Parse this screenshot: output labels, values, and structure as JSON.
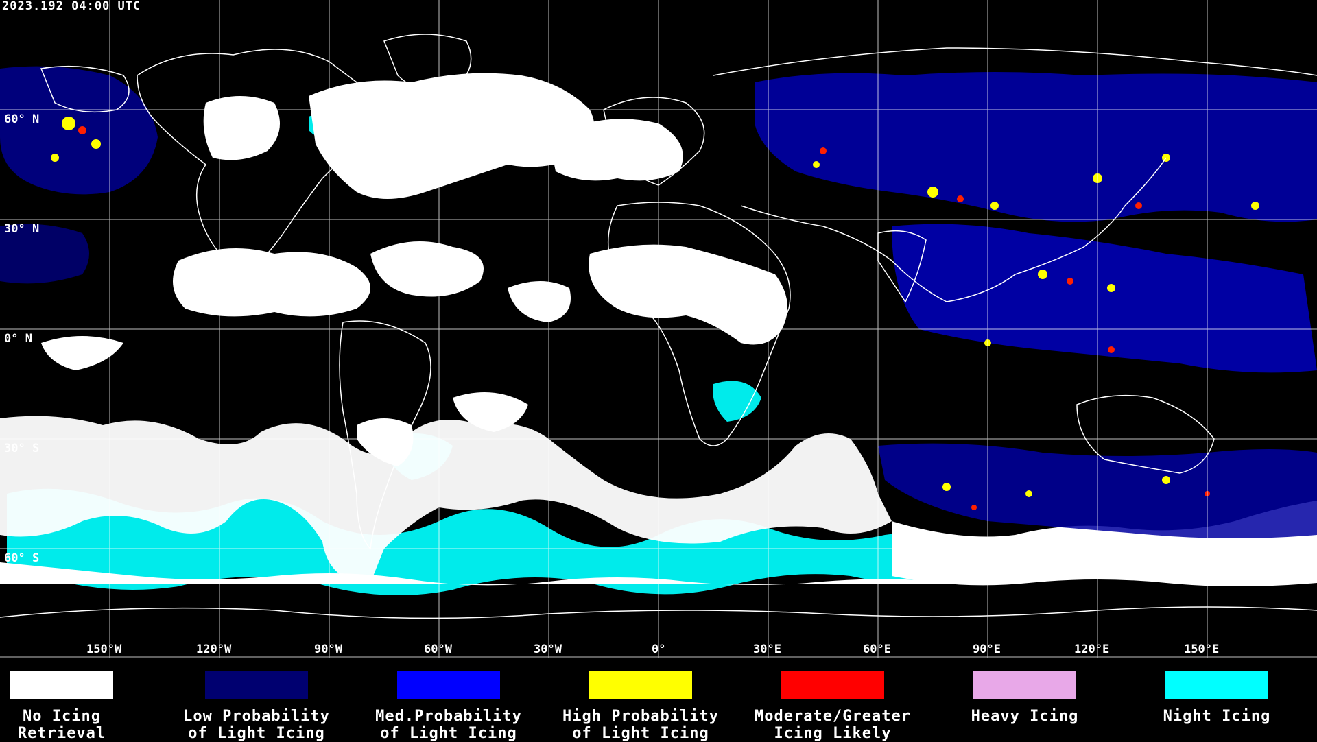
{
  "timestamp": "2023.192 04:00 UTC",
  "map": {
    "latitude_labels": [
      "60° N",
      "30° N",
      "0° N",
      "30° S",
      "60° S"
    ],
    "longitude_labels": [
      "150°W",
      "120°W",
      "90°W",
      "60°W",
      "30°W",
      "0°",
      "30°E",
      "60°E",
      "90°E",
      "120°E",
      "150°E"
    ],
    "colors": {
      "ocean_background": "#000000",
      "coastline": "#ffffff",
      "graticule": "#ffffff"
    }
  },
  "legend": [
    {
      "label": "No Icing\nRetrieval",
      "color": "#ffffff"
    },
    {
      "label": "Low Probability\nof Light Icing",
      "color": "#000070"
    },
    {
      "label": "Med.Probability\nof Light Icing",
      "color": "#0000ff"
    },
    {
      "label": "High Probability\nof Light Icing",
      "color": "#ffff00"
    },
    {
      "label": "Moderate/Greater\nIcing Likely",
      "color": "#ff0000"
    },
    {
      "label": "Heavy Icing",
      "color": "#e8a8e8"
    },
    {
      "label": "Night Icing",
      "color": "#00ffff"
    }
  ]
}
